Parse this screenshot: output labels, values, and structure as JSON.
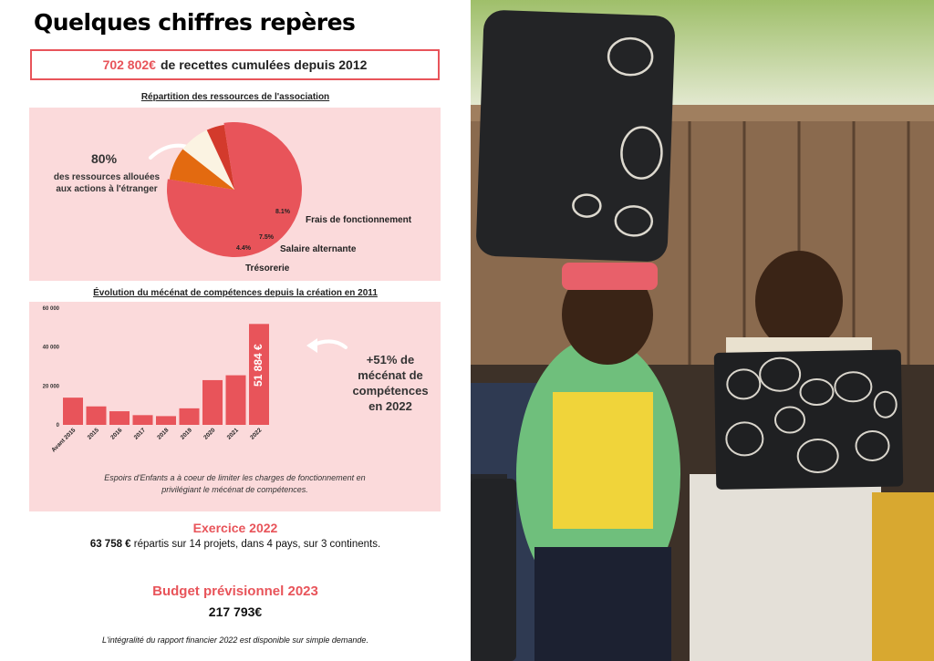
{
  "title": "Quelques chiffres repères",
  "headline": {
    "amount": "702 802€",
    "text": "de recettes cumulées depuis 2012"
  },
  "pie_section": {
    "title": "Répartition des ressources de l'association",
    "annotation_value": "80%",
    "annotation_text_line1": "des ressources allouées",
    "annotation_text_line2": "aux actions à l'étranger"
  },
  "bar_section": {
    "title": "Évolution du mécénat de compétences depuis la création en 2011",
    "callout_line1": "+51% de",
    "callout_line2": "mécénat de",
    "callout_line3": "compétences",
    "callout_line4": "en 2022",
    "note_line1": "Espoirs d'Enfants a à coeur de limiter les charges de fonctionnement en",
    "note_line2": "privilégiant le mécénat de compétences."
  },
  "exercice": {
    "title": "Exercice 2022",
    "amount": "63 758 €",
    "text": "répartis sur 14 projets, dans 4 pays, sur 3 continents."
  },
  "budget": {
    "title": "Budget prévisionnel 2023",
    "amount": "217 793€"
  },
  "footer": "L'intégralité du rapport financier 2022 est disponible sur simple demande.",
  "chart_data": [
    {
      "type": "pie",
      "title": "Répartition des ressources de l'association",
      "slices": [
        {
          "label": "",
          "value": 80,
          "value_label": "",
          "color": "#e8545a"
        },
        {
          "label": "Frais de fonctionnement",
          "value": 8.1,
          "value_label": "8.1%",
          "color": "#e36a10"
        },
        {
          "label": "Salaire alternante",
          "value": 7.5,
          "value_label": "7.5%",
          "color": "#fbf3e2"
        },
        {
          "label": "Trésorerie",
          "value": 4.4,
          "value_label": "4.4%",
          "color": "#d33a2c"
        }
      ]
    },
    {
      "type": "bar",
      "title": "Évolution du mécénat de compétences depuis la création en 2011",
      "categories": [
        "Avant 2015",
        "2015",
        "2016",
        "2017",
        "2018",
        "2019",
        "2020",
        "2021",
        "2022"
      ],
      "values": [
        14000,
        9500,
        7000,
        5000,
        4500,
        8500,
        23000,
        25500,
        51884
      ],
      "ylim": [
        0,
        60000
      ],
      "yticks": [
        0,
        20000,
        40000,
        60000
      ],
      "ytick_labels": [
        "0",
        "20 000",
        "40 000",
        "60 000"
      ],
      "bar_color": "#e8545a",
      "data_labels": {
        "2022": "51 884 €"
      },
      "grid": false
    }
  ]
}
